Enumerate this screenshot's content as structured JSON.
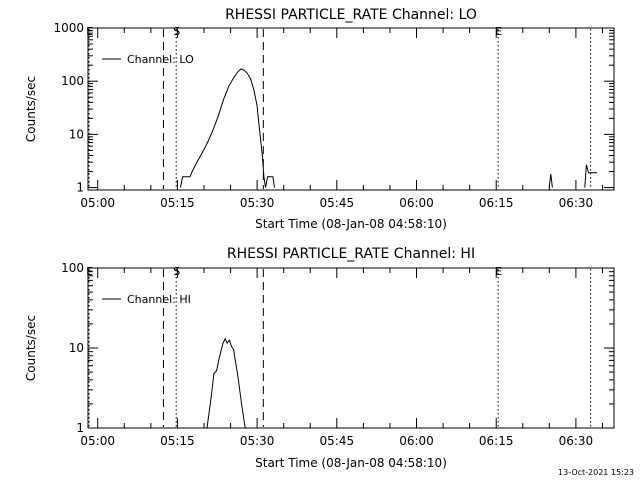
{
  "footer": {
    "timestamp": "13-Oct-2021 15:23"
  },
  "chart_data": [
    {
      "type": "line",
      "title": "RHESSI PARTICLE_RATE Channel: LO",
      "xlabel": "Start Time (08-Jan-08 04:58:10)",
      "ylabel": "Counts/sec",
      "y_scale": "log",
      "ylim": [
        0.9,
        1000
      ],
      "xlim_minutes": [
        0,
        99
      ],
      "x_ticks": [
        {
          "t": 1.83,
          "label": "05:00"
        },
        {
          "t": 16.83,
          "label": "05:15"
        },
        {
          "t": 31.83,
          "label": "05:30"
        },
        {
          "t": 46.83,
          "label": "05:45"
        },
        {
          "t": 61.83,
          "label": "06:00"
        },
        {
          "t": 76.83,
          "label": "06:15"
        },
        {
          "t": 91.83,
          "label": "06:30"
        }
      ],
      "y_ticks": [
        {
          "v": 1,
          "label": "1"
        },
        {
          "v": 10,
          "label": "10"
        },
        {
          "v": 100,
          "label": "100"
        },
        {
          "v": 1000,
          "label": "1000"
        }
      ],
      "legend": {
        "label": "Channel: LO",
        "position": "top-left"
      },
      "markers": [
        {
          "t": 0.2,
          "style": "dotted",
          "label": "E"
        },
        {
          "t": 14.2,
          "style": "dashed",
          "label": ""
        },
        {
          "t": 16.6,
          "style": "dotted",
          "label": "S"
        },
        {
          "t": 33.0,
          "style": "dashed",
          "label": ""
        },
        {
          "t": 77.2,
          "style": "dotted",
          "label": "E"
        },
        {
          "t": 94.6,
          "style": "dotted",
          "label": ""
        }
      ],
      "series": [
        {
          "points": [
            [
              17.4,
              1.0
            ],
            [
              17.8,
              1.6
            ],
            [
              19.2,
              1.6
            ],
            [
              19.6,
              2.0
            ],
            [
              20.5,
              3.0
            ],
            [
              21.5,
              4.5
            ],
            [
              22.5,
              7.0
            ],
            [
              23.5,
              12
            ],
            [
              24.5,
              22
            ],
            [
              25.5,
              45
            ],
            [
              26.5,
              80
            ],
            [
              27.5,
              120
            ],
            [
              28.2,
              150
            ],
            [
              28.8,
              170
            ],
            [
              29.4,
              160
            ],
            [
              30.0,
              140
            ],
            [
              30.6,
              110
            ],
            [
              31.2,
              70
            ],
            [
              31.8,
              35
            ],
            [
              32.3,
              12
            ],
            [
              32.8,
              4
            ],
            [
              33.1,
              1.6
            ],
            [
              33.4,
              1.0
            ],
            [
              33.8,
              1.6
            ],
            [
              34.8,
              1.6
            ],
            [
              35.1,
              1.0
            ]
          ]
        },
        {
          "points": [
            [
              86.8,
              1.0
            ],
            [
              87.1,
              1.8
            ],
            [
              87.4,
              1.0
            ]
          ]
        },
        {
          "points": [
            [
              93.5,
              1.0
            ],
            [
              93.8,
              2.7
            ],
            [
              94.2,
              1.9
            ],
            [
              95.8,
              1.9
            ]
          ]
        }
      ]
    },
    {
      "type": "line",
      "title": "RHESSI PARTICLE_RATE Channel: HI",
      "xlabel": "Start Time (08-Jan-08 04:58:10)",
      "ylabel": "Counts/sec",
      "y_scale": "log",
      "ylim": [
        1,
        100
      ],
      "xlim_minutes": [
        0,
        99
      ],
      "x_ticks": [
        {
          "t": 1.83,
          "label": "05:00"
        },
        {
          "t": 16.83,
          "label": "05:15"
        },
        {
          "t": 31.83,
          "label": "05:30"
        },
        {
          "t": 46.83,
          "label": "05:45"
        },
        {
          "t": 61.83,
          "label": "06:00"
        },
        {
          "t": 76.83,
          "label": "06:15"
        },
        {
          "t": 91.83,
          "label": "06:30"
        }
      ],
      "y_ticks": [
        {
          "v": 1,
          "label": "1"
        },
        {
          "v": 10,
          "label": "10"
        },
        {
          "v": 100,
          "label": "100"
        }
      ],
      "legend": {
        "label": "Channel: HI",
        "position": "top-left"
      },
      "markers": [
        {
          "t": 0.2,
          "style": "dotted",
          "label": "E"
        },
        {
          "t": 14.2,
          "style": "dashed",
          "label": ""
        },
        {
          "t": 16.6,
          "style": "dotted",
          "label": "S"
        },
        {
          "t": 33.0,
          "style": "dashed",
          "label": ""
        },
        {
          "t": 77.2,
          "style": "dotted",
          "label": "E"
        },
        {
          "t": 94.6,
          "style": "dotted",
          "label": ""
        }
      ],
      "series": [
        {
          "points": [
            [
              22.4,
              1.0
            ],
            [
              23.2,
              2.5
            ],
            [
              23.7,
              4.8
            ],
            [
              24.2,
              5.2
            ],
            [
              24.6,
              7.0
            ],
            [
              25.0,
              9.0
            ],
            [
              25.4,
              11.5
            ],
            [
              25.8,
              13.0
            ],
            [
              26.2,
              11.5
            ],
            [
              26.6,
              12.5
            ],
            [
              27.0,
              10.5
            ],
            [
              27.4,
              9.5
            ],
            [
              27.8,
              6.5
            ],
            [
              28.2,
              4.5
            ],
            [
              28.6,
              2.8
            ],
            [
              29.0,
              1.8
            ],
            [
              29.4,
              1.2
            ],
            [
              29.6,
              1.0
            ]
          ]
        }
      ]
    }
  ]
}
